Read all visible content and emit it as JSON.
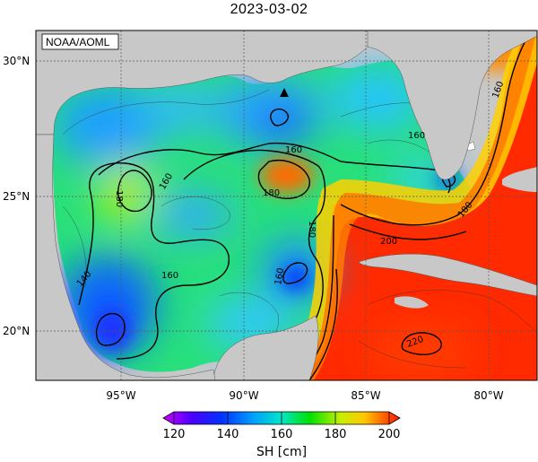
{
  "title": "2023-03-02",
  "credit": "NOAA/AOML",
  "lat_labels": [
    "30°N",
    "25°N",
    "20°N"
  ],
  "lon_labels": [
    "95°W",
    "90°W",
    "85°W",
    "80°W"
  ],
  "contour_labels": [
    "160",
    "180",
    "160",
    "180",
    "160",
    "180",
    "160",
    "140",
    "160",
    "180",
    "200",
    "220",
    "160"
  ],
  "colorbar": {
    "ticks": [
      "120",
      "140",
      "160",
      "180",
      "200"
    ],
    "unit_label": "SH [cm]"
  },
  "colors": {
    "land": "#c8c8c8",
    "low": "#0000ff",
    "mid": "#00dd00",
    "high": "#ff1a00"
  }
}
